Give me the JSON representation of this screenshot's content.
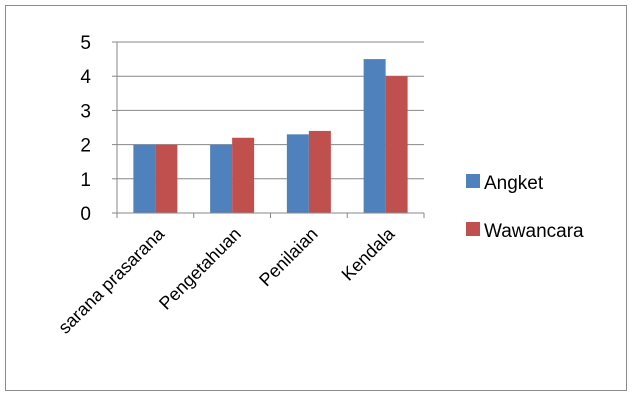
{
  "chart_data": {
    "type": "bar",
    "title": "",
    "xlabel": "",
    "ylabel": "",
    "categories": [
      "sarana prasarana",
      "Pengetahuan",
      "Penilaian",
      "Kendala"
    ],
    "series": [
      {
        "name": "Angket",
        "color": "#4f81bd",
        "values": [
          2,
          2,
          2.3,
          4.5
        ]
      },
      {
        "name": "Wawancara",
        "color": "#c0504d",
        "values": [
          2,
          2.2,
          2.4,
          4
        ]
      }
    ],
    "ylim": [
      0,
      5
    ],
    "yticks": [
      "0",
      "1",
      "2",
      "3",
      "4",
      "5"
    ],
    "grid": true,
    "legend": "right"
  }
}
